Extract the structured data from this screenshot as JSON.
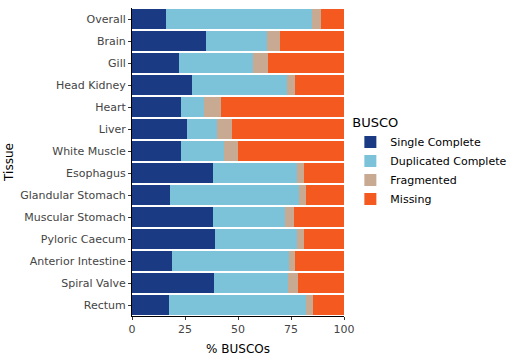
{
  "chart_data": {
    "type": "bar",
    "orientation": "horizontal",
    "stacked": true,
    "grid": false,
    "legend": "right",
    "legend_title": "BUSCO",
    "x_label": "% BUSCOs",
    "y_label": "Tissue",
    "categories": [
      "Overall",
      "Brain",
      "Gill",
      "Head Kidney",
      "Heart",
      "Liver",
      "White Muscle",
      "Esophagus",
      "Glandular Stomach",
      "Muscular Stomach",
      "Pyloric Caecum",
      "Anterior Intestine",
      "Spiral Valve",
      "Rectum"
    ],
    "xlim": [
      0,
      100
    ],
    "xticks": [
      0,
      25,
      50,
      75,
      100
    ],
    "series": [
      {
        "name": "Single Complete",
        "color": "#1b3a84",
        "values": [
          16,
          35,
          22,
          28.5,
          23,
          26,
          23,
          38,
          18,
          38,
          39,
          19,
          38.5,
          17.5
        ]
      },
      {
        "name": "Duplicated Complete",
        "color": "#7cc3da",
        "values": [
          69,
          28.5,
          35,
          44.5,
          11,
          14,
          20.5,
          40,
          61,
          34,
          39,
          55,
          35,
          64.5
        ]
      },
      {
        "name": "Fragmented",
        "color": "#c8aa92",
        "values": [
          4,
          6.5,
          7,
          4,
          8,
          7,
          6.5,
          3,
          3,
          4.5,
          3,
          3,
          5,
          3.5
        ]
      },
      {
        "name": "Missing",
        "color": "#f45a20",
        "values": [
          11,
          30,
          36,
          23,
          58,
          53,
          50,
          19,
          18,
          23.5,
          19,
          23,
          21.5,
          14.5
        ]
      }
    ]
  }
}
